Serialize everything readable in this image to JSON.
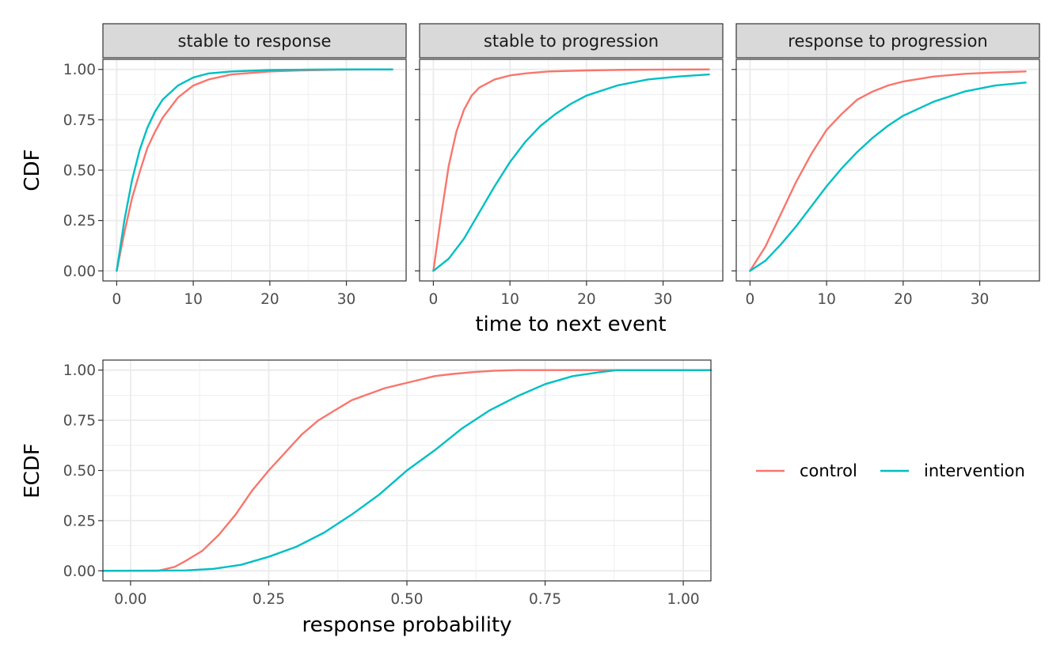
{
  "colors": {
    "control": "#F8766D",
    "intervention": "#00BFC4",
    "strip_bg": "#D9D9D9",
    "grid": "#EBEBEB",
    "border": "#333333"
  },
  "chart_data": [
    {
      "type": "line",
      "facet_title": "stable to response",
      "xlabel": "time to next event",
      "ylabel": "CDF",
      "xlim": [
        0,
        36
      ],
      "ylim": [
        0,
        1
      ],
      "x_ticks": [
        "0",
        "10",
        "20",
        "30"
      ],
      "y_ticks": [
        "0.00",
        "0.25",
        "0.50",
        "0.75",
        "1.00"
      ],
      "grid": true,
      "series": [
        {
          "name": "control",
          "x": [
            0,
            1,
            2,
            3,
            4,
            5,
            6,
            8,
            10,
            12,
            15,
            20,
            25,
            30,
            36
          ],
          "y": [
            0,
            0.19,
            0.36,
            0.49,
            0.61,
            0.69,
            0.76,
            0.86,
            0.92,
            0.95,
            0.975,
            0.99,
            0.996,
            0.999,
            1.0
          ]
        },
        {
          "name": "intervention",
          "x": [
            0,
            1,
            2,
            3,
            4,
            5,
            6,
            8,
            10,
            12,
            15,
            20,
            25,
            30,
            36
          ],
          "y": [
            0,
            0.25,
            0.45,
            0.6,
            0.71,
            0.79,
            0.85,
            0.92,
            0.96,
            0.98,
            0.99,
            0.997,
            0.999,
            1.0,
            1.0
          ]
        }
      ]
    },
    {
      "type": "line",
      "facet_title": "stable to progression",
      "xlabel": "time to next event",
      "ylabel": "CDF",
      "xlim": [
        0,
        36
      ],
      "ylim": [
        0,
        1
      ],
      "x_ticks": [
        "0",
        "10",
        "20",
        "30"
      ],
      "y_ticks": [
        "0.00",
        "0.25",
        "0.50",
        "0.75",
        "1.00"
      ],
      "grid": true,
      "series": [
        {
          "name": "control",
          "x": [
            0,
            1,
            2,
            3,
            4,
            5,
            6,
            8,
            10,
            12,
            15,
            20,
            25,
            30,
            36
          ],
          "y": [
            0,
            0.27,
            0.52,
            0.69,
            0.8,
            0.87,
            0.91,
            0.95,
            0.97,
            0.98,
            0.99,
            0.995,
            0.998,
            0.999,
            1.0
          ]
        },
        {
          "name": "intervention",
          "x": [
            0,
            2,
            4,
            6,
            8,
            10,
            12,
            14,
            16,
            18,
            20,
            24,
            28,
            32,
            36
          ],
          "y": [
            0,
            0.06,
            0.16,
            0.29,
            0.42,
            0.54,
            0.64,
            0.72,
            0.78,
            0.83,
            0.87,
            0.92,
            0.95,
            0.965,
            0.975
          ]
        }
      ]
    },
    {
      "type": "line",
      "facet_title": "response to progression",
      "xlabel": "time to next event",
      "ylabel": "CDF",
      "xlim": [
        0,
        36
      ],
      "ylim": [
        0,
        1
      ],
      "x_ticks": [
        "0",
        "10",
        "20",
        "30"
      ],
      "y_ticks": [
        "0.00",
        "0.25",
        "0.50",
        "0.75",
        "1.00"
      ],
      "grid": true,
      "series": [
        {
          "name": "control",
          "x": [
            0,
            2,
            4,
            6,
            8,
            10,
            12,
            14,
            16,
            18,
            20,
            24,
            28,
            32,
            36
          ],
          "y": [
            0,
            0.12,
            0.28,
            0.44,
            0.58,
            0.7,
            0.78,
            0.85,
            0.89,
            0.92,
            0.94,
            0.965,
            0.978,
            0.985,
            0.99
          ]
        },
        {
          "name": "intervention",
          "x": [
            0,
            2,
            4,
            6,
            8,
            10,
            12,
            14,
            16,
            18,
            20,
            24,
            28,
            32,
            36
          ],
          "y": [
            0,
            0.05,
            0.13,
            0.22,
            0.32,
            0.42,
            0.51,
            0.59,
            0.66,
            0.72,
            0.77,
            0.84,
            0.89,
            0.92,
            0.935
          ]
        }
      ]
    },
    {
      "type": "line",
      "xlabel": "response probability",
      "ylabel": "ECDF",
      "xlim": [
        -0.05,
        1.05
      ],
      "ylim": [
        0,
        1
      ],
      "x_ticks": [
        "0.00",
        "0.25",
        "0.50",
        "0.75",
        "1.00"
      ],
      "y_ticks": [
        "0.00",
        "0.25",
        "0.50",
        "0.75",
        "1.00"
      ],
      "grid": true,
      "series": [
        {
          "name": "control",
          "x": [
            -0.05,
            0.05,
            0.08,
            0.1,
            0.13,
            0.16,
            0.19,
            0.22,
            0.25,
            0.28,
            0.31,
            0.34,
            0.37,
            0.4,
            0.43,
            0.46,
            0.49,
            0.52,
            0.55,
            0.58,
            0.62,
            0.66,
            0.7,
            1.05
          ],
          "y": [
            0,
            0,
            0.02,
            0.05,
            0.1,
            0.18,
            0.28,
            0.4,
            0.5,
            0.59,
            0.68,
            0.75,
            0.8,
            0.85,
            0.88,
            0.91,
            0.93,
            0.95,
            0.97,
            0.98,
            0.99,
            0.997,
            1.0,
            1.0
          ]
        },
        {
          "name": "intervention",
          "x": [
            -0.05,
            0.1,
            0.15,
            0.2,
            0.25,
            0.3,
            0.35,
            0.4,
            0.45,
            0.5,
            0.55,
            0.6,
            0.65,
            0.7,
            0.75,
            0.8,
            0.85,
            0.88,
            1.05
          ],
          "y": [
            0,
            0.002,
            0.01,
            0.03,
            0.07,
            0.12,
            0.19,
            0.28,
            0.38,
            0.5,
            0.6,
            0.71,
            0.8,
            0.87,
            0.93,
            0.97,
            0.99,
            1.0,
            1.0
          ]
        }
      ]
    }
  ],
  "legend": {
    "items": [
      {
        "label": "control"
      },
      {
        "label": "intervention"
      }
    ],
    "position": "right"
  }
}
